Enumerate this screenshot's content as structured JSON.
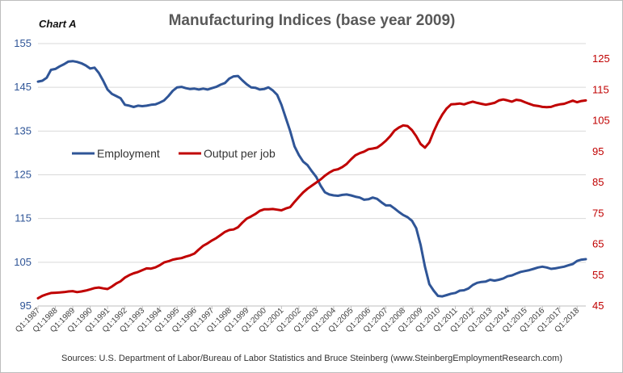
{
  "chart_data": {
    "type": "line",
    "chart_label": "Chart A",
    "title": "Manufacturing Indices (base year 2009)",
    "source": "Sources: U.S. Department of Labor/Bureau of Labor Statistics and Bruce Steinberg (www.SteinbergEmploymentResearch.com)",
    "y_left": {
      "ticks": [
        95,
        105,
        115,
        125,
        135,
        145,
        155
      ],
      "range": [
        95,
        155
      ],
      "color": "#2f5597"
    },
    "y_right": {
      "ticks": [
        45,
        55,
        65,
        75,
        85,
        95,
        105,
        115,
        125
      ],
      "range": [
        45,
        130
      ],
      "color": "#c00000"
    },
    "x_ticks": [
      "Q1:1987",
      "Q1:1988",
      "Q1:1989",
      "Q1:1990",
      "Q1:1991",
      "Q1:1992",
      "Q1:1993",
      "Q1:1994",
      "Q1:1995",
      "Q1:1996",
      "Q1:1997",
      "Q1:1998",
      "Q1:1999",
      "Q1:2000",
      "Q1:2001",
      "Q1:2002",
      "Q1:2003",
      "Q1:2004",
      "Q1:2005",
      "Q1:2006",
      "Q1:2007",
      "Q1:2008",
      "Q1:2009",
      "Q1:2010",
      "Q1:2011",
      "Q1:2012",
      "Q1:2013",
      "Q1:2014",
      "Q1:2015",
      "Q1:2016",
      "Q1:2017",
      "Q1:2018"
    ],
    "x_range": [
      1987.0,
      2018.5
    ],
    "grid": "horizontal",
    "legend_position": "left-middle",
    "series": [
      {
        "name": "Employment",
        "axis": "left",
        "color": "#2f5597",
        "points": [
          [
            1987.0,
            146.3
          ],
          [
            1987.25,
            146.5
          ],
          [
            1987.5,
            147.2
          ],
          [
            1987.75,
            149.0
          ],
          [
            1988.0,
            149.2
          ],
          [
            1988.25,
            149.8
          ],
          [
            1988.5,
            150.3
          ],
          [
            1988.75,
            150.9
          ],
          [
            1989.0,
            151.0
          ],
          [
            1989.25,
            150.8
          ],
          [
            1989.5,
            150.5
          ],
          [
            1989.75,
            150.0
          ],
          [
            1990.0,
            149.3
          ],
          [
            1990.25,
            149.5
          ],
          [
            1990.5,
            148.3
          ],
          [
            1990.75,
            146.5
          ],
          [
            1991.0,
            144.5
          ],
          [
            1991.25,
            143.5
          ],
          [
            1991.5,
            143.0
          ],
          [
            1991.75,
            142.5
          ],
          [
            1992.0,
            141.0
          ],
          [
            1992.25,
            140.8
          ],
          [
            1992.5,
            140.5
          ],
          [
            1992.75,
            140.8
          ],
          [
            1993.0,
            140.7
          ],
          [
            1993.25,
            140.8
          ],
          [
            1993.5,
            141.0
          ],
          [
            1993.75,
            141.1
          ],
          [
            1994.0,
            141.5
          ],
          [
            1994.25,
            142.0
          ],
          [
            1994.5,
            143.0
          ],
          [
            1994.75,
            144.2
          ],
          [
            1995.0,
            145.0
          ],
          [
            1995.25,
            145.1
          ],
          [
            1995.5,
            144.8
          ],
          [
            1995.75,
            144.6
          ],
          [
            1996.0,
            144.7
          ],
          [
            1996.25,
            144.5
          ],
          [
            1996.5,
            144.7
          ],
          [
            1996.75,
            144.5
          ],
          [
            1997.0,
            144.8
          ],
          [
            1997.25,
            145.1
          ],
          [
            1997.5,
            145.6
          ],
          [
            1997.75,
            146.0
          ],
          [
            1998.0,
            147.0
          ],
          [
            1998.25,
            147.5
          ],
          [
            1998.5,
            147.6
          ],
          [
            1998.75,
            146.6
          ],
          [
            1999.0,
            145.7
          ],
          [
            1999.25,
            145.0
          ],
          [
            1999.5,
            144.9
          ],
          [
            1999.75,
            144.5
          ],
          [
            2000.0,
            144.6
          ],
          [
            2000.25,
            145.0
          ],
          [
            2000.5,
            144.3
          ],
          [
            2000.75,
            143.3
          ],
          [
            2001.0,
            141.0
          ],
          [
            2001.25,
            138.0
          ],
          [
            2001.5,
            135.0
          ],
          [
            2001.75,
            131.5
          ],
          [
            2002.0,
            129.5
          ],
          [
            2002.25,
            128.0
          ],
          [
            2002.5,
            127.2
          ],
          [
            2002.75,
            125.8
          ],
          [
            2003.0,
            124.5
          ],
          [
            2003.25,
            122.5
          ],
          [
            2003.5,
            121.0
          ],
          [
            2003.75,
            120.5
          ],
          [
            2004.0,
            120.3
          ],
          [
            2004.25,
            120.2
          ],
          [
            2004.5,
            120.4
          ],
          [
            2004.75,
            120.5
          ],
          [
            2005.0,
            120.3
          ],
          [
            2005.25,
            120.0
          ],
          [
            2005.5,
            119.8
          ],
          [
            2005.75,
            119.3
          ],
          [
            2006.0,
            119.4
          ],
          [
            2006.25,
            119.8
          ],
          [
            2006.5,
            119.5
          ],
          [
            2006.75,
            118.7
          ],
          [
            2007.0,
            118.0
          ],
          [
            2007.25,
            118.0
          ],
          [
            2007.5,
            117.3
          ],
          [
            2007.75,
            116.5
          ],
          [
            2008.0,
            115.8
          ],
          [
            2008.25,
            115.3
          ],
          [
            2008.5,
            114.5
          ],
          [
            2008.75,
            112.8
          ],
          [
            2009.0,
            109.0
          ],
          [
            2009.25,
            104.0
          ],
          [
            2009.5,
            100.0
          ],
          [
            2009.75,
            98.5
          ],
          [
            2010.0,
            97.3
          ],
          [
            2010.25,
            97.2
          ],
          [
            2010.5,
            97.5
          ],
          [
            2010.75,
            97.8
          ],
          [
            2011.0,
            98.0
          ],
          [
            2011.25,
            98.5
          ],
          [
            2011.5,
            98.6
          ],
          [
            2011.75,
            99.0
          ],
          [
            2012.0,
            99.8
          ],
          [
            2012.25,
            100.3
          ],
          [
            2012.5,
            100.5
          ],
          [
            2012.75,
            100.6
          ],
          [
            2013.0,
            101.0
          ],
          [
            2013.25,
            100.8
          ],
          [
            2013.5,
            101.0
          ],
          [
            2013.75,
            101.3
          ],
          [
            2014.0,
            101.8
          ],
          [
            2014.25,
            102.0
          ],
          [
            2014.5,
            102.4
          ],
          [
            2014.75,
            102.8
          ],
          [
            2015.0,
            103.0
          ],
          [
            2015.25,
            103.2
          ],
          [
            2015.5,
            103.5
          ],
          [
            2015.75,
            103.8
          ],
          [
            2016.0,
            104.0
          ],
          [
            2016.25,
            103.8
          ],
          [
            2016.5,
            103.5
          ],
          [
            2016.75,
            103.6
          ],
          [
            2017.0,
            103.8
          ],
          [
            2017.25,
            104.0
          ],
          [
            2017.5,
            104.3
          ],
          [
            2017.75,
            104.6
          ],
          [
            2018.0,
            105.3
          ],
          [
            2018.25,
            105.6
          ],
          [
            2018.5,
            105.7
          ]
        ]
      },
      {
        "name": "Output per job",
        "axis": "right",
        "color": "#c00000",
        "points": [
          [
            1987.0,
            47.5
          ],
          [
            1987.25,
            48.3
          ],
          [
            1987.5,
            48.8
          ],
          [
            1987.75,
            49.2
          ],
          [
            1988.0,
            49.3
          ],
          [
            1988.25,
            49.4
          ],
          [
            1988.5,
            49.5
          ],
          [
            1988.75,
            49.7
          ],
          [
            1989.0,
            49.8
          ],
          [
            1989.25,
            49.5
          ],
          [
            1989.5,
            49.7
          ],
          [
            1989.75,
            50.0
          ],
          [
            1990.0,
            50.4
          ],
          [
            1990.25,
            50.8
          ],
          [
            1990.5,
            51.0
          ],
          [
            1990.75,
            50.7
          ],
          [
            1991.0,
            50.5
          ],
          [
            1991.25,
            51.3
          ],
          [
            1991.5,
            52.3
          ],
          [
            1991.75,
            53.0
          ],
          [
            1992.0,
            54.2
          ],
          [
            1992.25,
            55.0
          ],
          [
            1992.5,
            55.6
          ],
          [
            1992.75,
            56.0
          ],
          [
            1993.0,
            56.6
          ],
          [
            1993.25,
            57.2
          ],
          [
            1993.5,
            57.1
          ],
          [
            1993.75,
            57.5
          ],
          [
            1994.0,
            58.2
          ],
          [
            1994.25,
            59.1
          ],
          [
            1994.5,
            59.5
          ],
          [
            1994.75,
            60.0
          ],
          [
            1995.0,
            60.3
          ],
          [
            1995.25,
            60.5
          ],
          [
            1995.5,
            61.0
          ],
          [
            1995.75,
            61.4
          ],
          [
            1996.0,
            62.0
          ],
          [
            1996.25,
            63.3
          ],
          [
            1996.5,
            64.5
          ],
          [
            1996.75,
            65.3
          ],
          [
            1997.0,
            66.2
          ],
          [
            1997.25,
            67.0
          ],
          [
            1997.5,
            68.0
          ],
          [
            1997.75,
            69.0
          ],
          [
            1998.0,
            69.6
          ],
          [
            1998.25,
            69.8
          ],
          [
            1998.5,
            70.5
          ],
          [
            1998.75,
            72.0
          ],
          [
            1999.0,
            73.3
          ],
          [
            1999.25,
            74.0
          ],
          [
            1999.5,
            74.8
          ],
          [
            1999.75,
            75.8
          ],
          [
            2000.0,
            76.3
          ],
          [
            2000.25,
            76.3
          ],
          [
            2000.5,
            76.4
          ],
          [
            2000.75,
            76.2
          ],
          [
            2001.0,
            76.0
          ],
          [
            2001.25,
            76.6
          ],
          [
            2001.5,
            77.0
          ],
          [
            2001.75,
            78.7
          ],
          [
            2002.0,
            80.3
          ],
          [
            2002.25,
            81.8
          ],
          [
            2002.5,
            83.0
          ],
          [
            2002.75,
            84.0
          ],
          [
            2003.0,
            85.0
          ],
          [
            2003.25,
            86.0
          ],
          [
            2003.5,
            87.2
          ],
          [
            2003.75,
            88.2
          ],
          [
            2004.0,
            89.0
          ],
          [
            2004.25,
            89.3
          ],
          [
            2004.5,
            90.0
          ],
          [
            2004.75,
            91.0
          ],
          [
            2005.0,
            92.5
          ],
          [
            2005.25,
            93.8
          ],
          [
            2005.5,
            94.5
          ],
          [
            2005.75,
            95.0
          ],
          [
            2006.0,
            95.8
          ],
          [
            2006.25,
            96.0
          ],
          [
            2006.5,
            96.3
          ],
          [
            2006.75,
            97.3
          ],
          [
            2007.0,
            98.5
          ],
          [
            2007.25,
            100.0
          ],
          [
            2007.5,
            101.8
          ],
          [
            2007.75,
            102.8
          ],
          [
            2008.0,
            103.5
          ],
          [
            2008.25,
            103.3
          ],
          [
            2008.5,
            102.0
          ],
          [
            2008.75,
            100.0
          ],
          [
            2009.0,
            97.5
          ],
          [
            2009.25,
            96.3
          ],
          [
            2009.5,
            98.0
          ],
          [
            2009.75,
            101.5
          ],
          [
            2010.0,
            104.5
          ],
          [
            2010.25,
            107.0
          ],
          [
            2010.5,
            109.0
          ],
          [
            2010.75,
            110.3
          ],
          [
            2011.0,
            110.4
          ],
          [
            2011.25,
            110.6
          ],
          [
            2011.5,
            110.3
          ],
          [
            2011.75,
            110.8
          ],
          [
            2012.0,
            111.2
          ],
          [
            2012.25,
            110.8
          ],
          [
            2012.5,
            110.5
          ],
          [
            2012.75,
            110.2
          ],
          [
            2013.0,
            110.5
          ],
          [
            2013.25,
            110.8
          ],
          [
            2013.5,
            111.6
          ],
          [
            2013.75,
            111.9
          ],
          [
            2014.0,
            111.6
          ],
          [
            2014.25,
            111.2
          ],
          [
            2014.5,
            111.8
          ],
          [
            2014.75,
            111.6
          ],
          [
            2015.0,
            111.0
          ],
          [
            2015.25,
            110.5
          ],
          [
            2015.5,
            110.0
          ],
          [
            2015.75,
            109.8
          ],
          [
            2016.0,
            109.5
          ],
          [
            2016.25,
            109.4
          ],
          [
            2016.5,
            109.5
          ],
          [
            2016.75,
            110.0
          ],
          [
            2017.0,
            110.3
          ],
          [
            2017.25,
            110.5
          ],
          [
            2017.5,
            111.0
          ],
          [
            2017.75,
            111.5
          ],
          [
            2018.0,
            111.0
          ],
          [
            2018.25,
            111.4
          ],
          [
            2018.5,
            111.6
          ]
        ]
      }
    ]
  }
}
